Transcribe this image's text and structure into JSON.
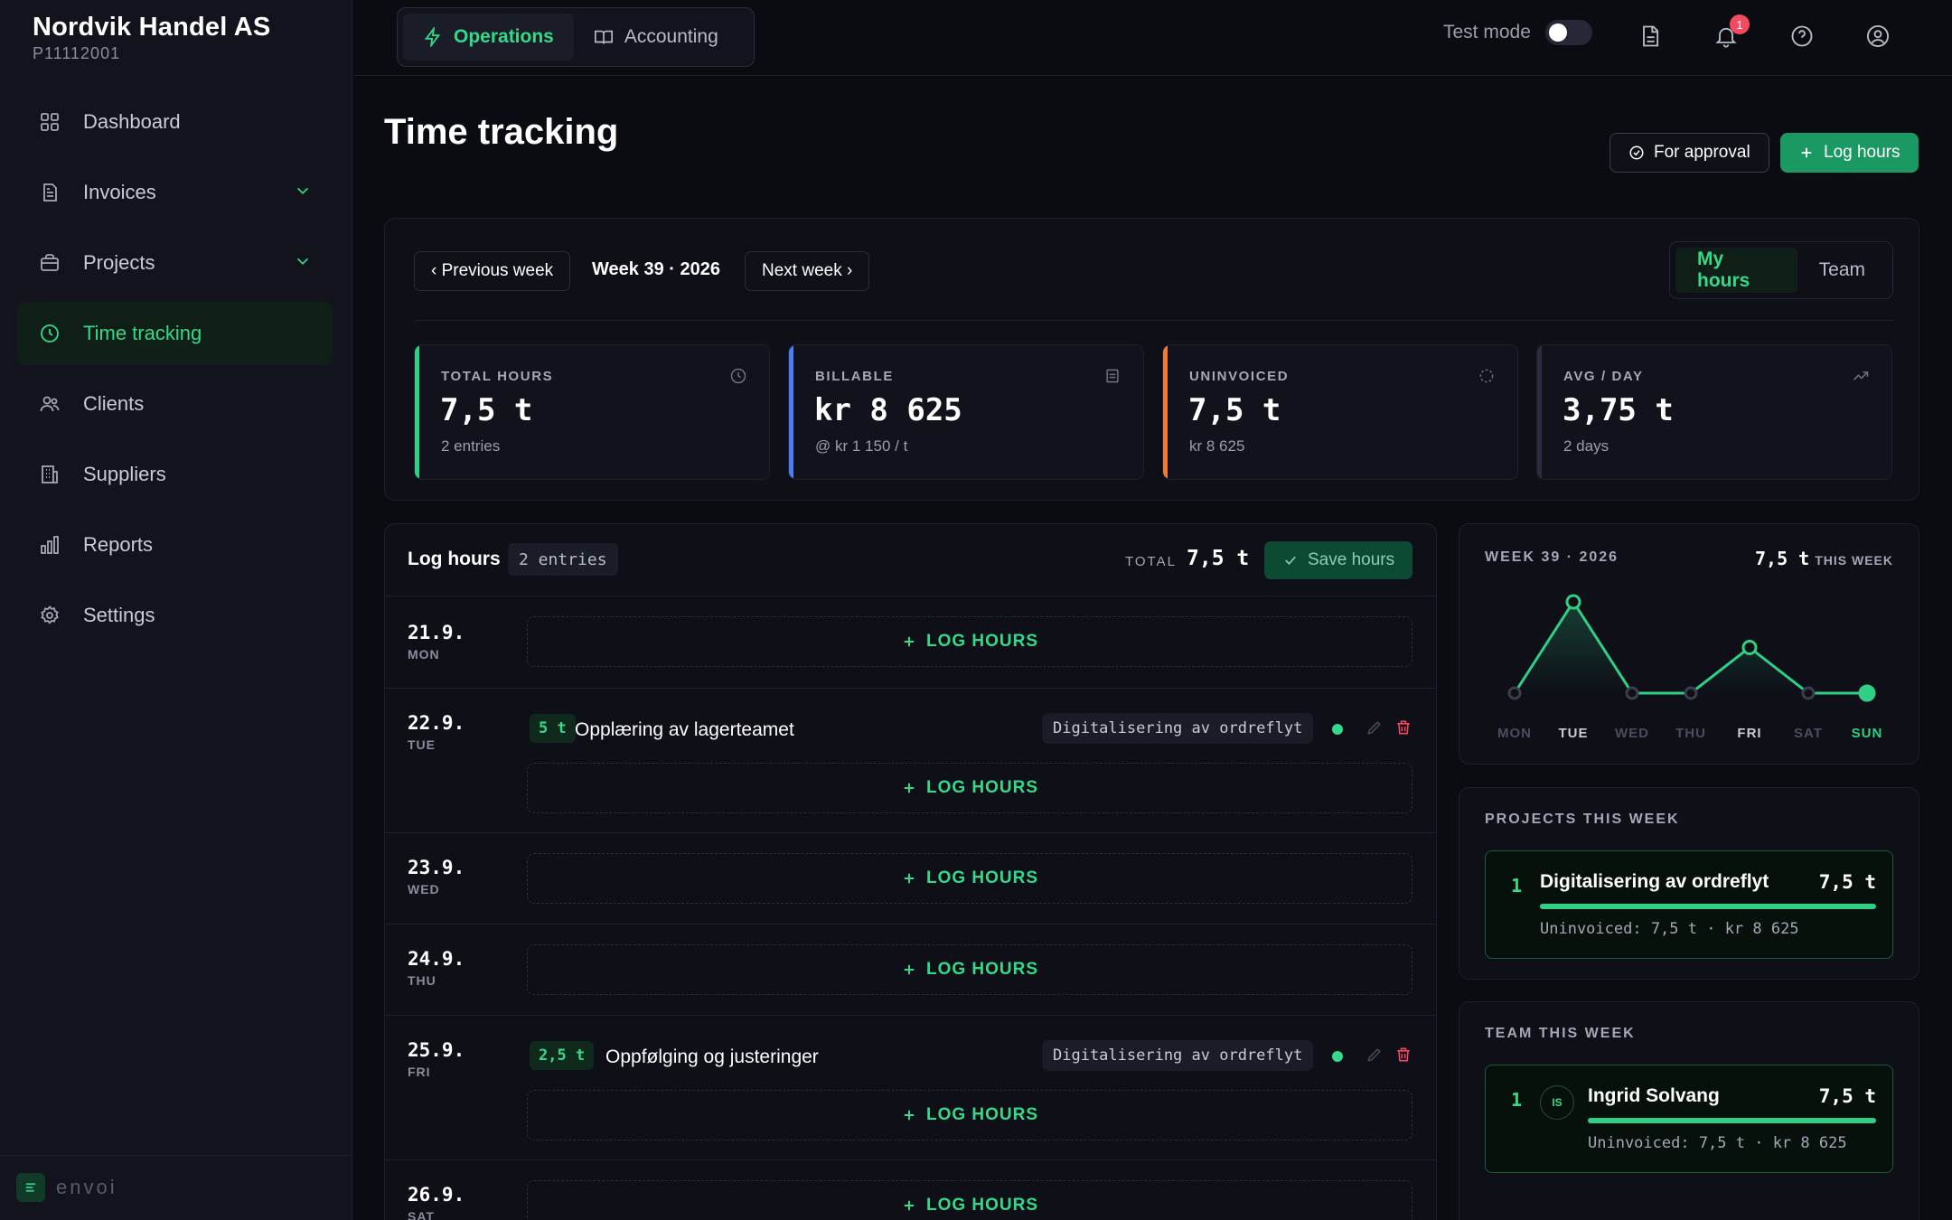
{
  "sidebar": {
    "company": "Nordvik Handel AS",
    "company_id": "P11112001",
    "items": [
      {
        "label": "Dashboard"
      },
      {
        "label": "Invoices"
      },
      {
        "label": "Projects"
      },
      {
        "label": "Time tracking"
      },
      {
        "label": "Clients"
      },
      {
        "label": "Suppliers"
      },
      {
        "label": "Reports"
      },
      {
        "label": "Settings"
      }
    ],
    "footer": "envoi"
  },
  "topbar": {
    "tabs": [
      {
        "label": "Operations"
      },
      {
        "label": "Accounting"
      }
    ],
    "test_mode_label": "Test mode",
    "notification_count": "1"
  },
  "page": {
    "title": "Time tracking",
    "for_approval": "For approval",
    "log_hours": "Log hours"
  },
  "week": {
    "prev": "‹ Previous week",
    "label": "Week 39 · 2026",
    "next": "Next week ›",
    "view_tabs": [
      {
        "label": "My hours"
      },
      {
        "label": "Team"
      }
    ]
  },
  "stats": [
    {
      "label": "TOTAL HOURS",
      "value": "7,5 t",
      "sub": "2 entries",
      "color": "#2fcf86"
    },
    {
      "label": "BILLABLE",
      "value": "kr 8 625",
      "sub": "@ kr 1 150 / t",
      "color": "#4d7cf5"
    },
    {
      "label": "UNINVOICED",
      "value": "7,5 t",
      "sub": "kr 8 625",
      "color": "#f2793a"
    },
    {
      "label": "AVG / DAY",
      "value": "3,75 t",
      "sub": "2 days",
      "color": "#2a2d3d"
    }
  ],
  "log": {
    "title": "Log hours",
    "count": "2 entries",
    "total_label": "TOTAL",
    "total": "7,5 t",
    "save": "Save hours",
    "log_hours_label": "LOG HOURS",
    "days": [
      {
        "date": "21.9.",
        "dow": "MON"
      },
      {
        "date": "22.9.",
        "dow": "TUE",
        "entry": {
          "hours": "5 t",
          "desc": "Opplæring av lagerteamet",
          "project": "Digitalisering av ordreflyt"
        }
      },
      {
        "date": "23.9.",
        "dow": "WED"
      },
      {
        "date": "24.9.",
        "dow": "THU"
      },
      {
        "date": "25.9.",
        "dow": "FRI",
        "entry": {
          "hours": "2,5 t",
          "desc": "Oppfølging og justeringer",
          "project": "Digitalisering av ordreflyt"
        }
      },
      {
        "date": "26.9.",
        "dow": "SAT"
      }
    ]
  },
  "week_chart": {
    "title": "WEEK 39 · 2026",
    "total": "7,5 t",
    "total_suffix": "THIS WEEK"
  },
  "chart_data": {
    "type": "line",
    "categories": [
      "MON",
      "TUE",
      "WED",
      "THU",
      "FRI",
      "SAT",
      "SUN"
    ],
    "values": [
      0,
      5,
      0,
      0,
      2.5,
      0,
      0
    ],
    "ylim": [
      0,
      5
    ],
    "highlight": "SUN",
    "color": "#2fcf86"
  },
  "projects_week": {
    "title": "PROJECTS THIS WEEK",
    "items": [
      {
        "rank": "1",
        "name": "Digitalisering av ordreflyt",
        "value": "7,5 t",
        "share": 1.0,
        "sub": "Uninvoiced: 7,5 t · kr 8 625"
      }
    ]
  },
  "team_week": {
    "title": "TEAM THIS WEEK",
    "items": [
      {
        "rank": "1",
        "initials": "IS",
        "name": "Ingrid Solvang",
        "value": "7,5 t",
        "share": 1.0,
        "sub": "Uninvoiced: 7,5 t · kr 8 625"
      }
    ]
  }
}
